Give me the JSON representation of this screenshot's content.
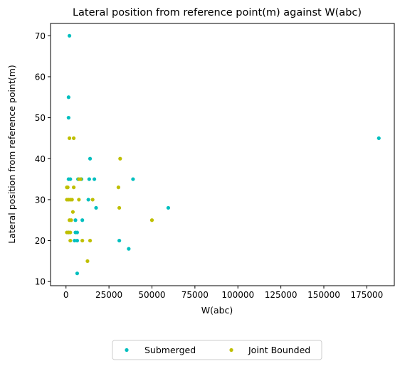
{
  "chart_data": {
    "type": "scatter",
    "title": "Lateral position from reference point(m) against W(abc)",
    "xlabel": "W(abc)",
    "ylabel": "Lateral position from reference point(m)",
    "xlim": [
      -9000,
      191000
    ],
    "ylim": [
      9,
      73
    ],
    "xticks": [
      0,
      25000,
      50000,
      75000,
      100000,
      125000,
      150000,
      175000
    ],
    "yticks": [
      10,
      20,
      30,
      40,
      50,
      60,
      70
    ],
    "grid": false,
    "legend": {
      "placement": "bottom-center, below plot",
      "columns": 2
    },
    "series": [
      {
        "name": "Submerged",
        "color": "#00bfbf",
        "points": [
          [
            2000,
            70
          ],
          [
            1500,
            55
          ],
          [
            1500,
            50
          ],
          [
            182000,
            45
          ],
          [
            14000,
            40
          ],
          [
            39000,
            35
          ],
          [
            1500,
            35
          ],
          [
            2500,
            35
          ],
          [
            7000,
            35
          ],
          [
            9000,
            35
          ],
          [
            13500,
            35
          ],
          [
            16500,
            35
          ],
          [
            13000,
            30
          ],
          [
            17500,
            28
          ],
          [
            59500,
            28
          ],
          [
            5500,
            25
          ],
          [
            9500,
            25
          ],
          [
            1500,
            22
          ],
          [
            5500,
            22
          ],
          [
            6500,
            22
          ],
          [
            5000,
            20
          ],
          [
            6500,
            20
          ],
          [
            31000,
            20
          ],
          [
            36500,
            18
          ],
          [
            6500,
            12
          ]
        ]
      },
      {
        "name": "Joint Bounded",
        "color": "#bfbf00",
        "points": [
          [
            2000,
            45
          ],
          [
            4500,
            45
          ],
          [
            31500,
            40
          ],
          [
            7500,
            35
          ],
          [
            8500,
            35
          ],
          [
            500,
            33
          ],
          [
            1000,
            33
          ],
          [
            4500,
            33
          ],
          [
            30500,
            33
          ],
          [
            500,
            30
          ],
          [
            1500,
            30
          ],
          [
            2500,
            30
          ],
          [
            3500,
            30
          ],
          [
            7500,
            30
          ],
          [
            15500,
            30
          ],
          [
            31000,
            28
          ],
          [
            4000,
            27
          ],
          [
            2000,
            25
          ],
          [
            3000,
            25
          ],
          [
            50000,
            25
          ],
          [
            500,
            22
          ],
          [
            1500,
            22
          ],
          [
            2500,
            22
          ],
          [
            2500,
            20
          ],
          [
            9500,
            20
          ],
          [
            14000,
            20
          ],
          [
            12500,
            15
          ]
        ]
      }
    ]
  }
}
